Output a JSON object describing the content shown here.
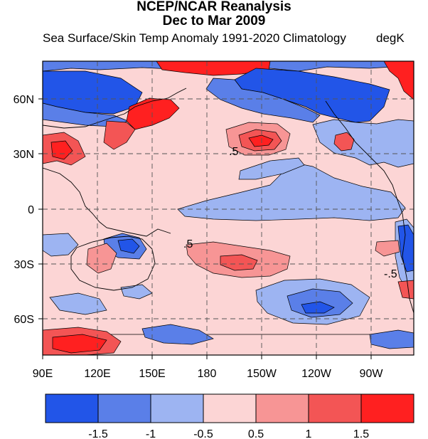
{
  "title_line1": "NCEP/NCAR Reanalysis",
  "title_line2": "Dec to Mar 2009",
  "subtitle": "Sea Surface/Skin Temp Anomaly  1991-2020 Climatology",
  "units": "degK",
  "axes": {
    "x_ticks": [
      "90E",
      "120E",
      "150E",
      "180",
      "150W",
      "120W",
      "90W"
    ],
    "y_ticks": [
      "60N",
      "30N",
      "0",
      "30S",
      "60S"
    ]
  },
  "contour_labels": [
    ".5",
    ".5",
    "-.5"
  ],
  "colorbar": {
    "labels": [
      "-1.5",
      "-1",
      "-0.5",
      "0.5",
      "1",
      "1.5"
    ],
    "colors": [
      "#2255e8",
      "#5a7fe8",
      "#9db4f2",
      "#fcd5d5",
      "#f79595",
      "#f35555",
      "#ff2020"
    ]
  },
  "palette": {
    "strong_cold": "#2255e8",
    "cold": "#5a7fe8",
    "weak_cold": "#9db4f2",
    "neutral": "#fcd5d5",
    "weak_warm": "#f79595",
    "warm": "#f35555",
    "strong_warm": "#ff2020"
  }
}
